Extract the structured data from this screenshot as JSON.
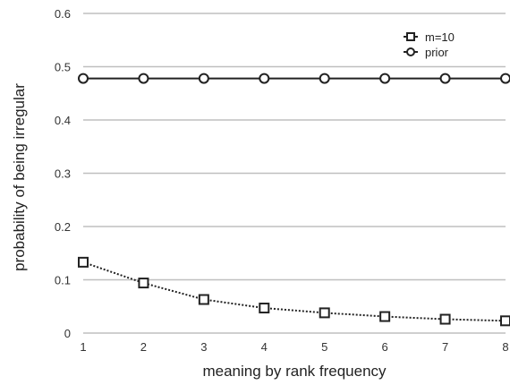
{
  "chart_data": {
    "type": "line",
    "title": "",
    "xlabel": "meaning by rank frequency",
    "ylabel": "probability of being irregular",
    "x": [
      1,
      2,
      3,
      4,
      5,
      6,
      7,
      8
    ],
    "xticks": [
      "1",
      "2",
      "3",
      "4",
      "5",
      "6",
      "7",
      "8"
    ],
    "yticks": [
      "0",
      "0.1",
      "0.2",
      "0.3",
      "0.4",
      "0.5",
      "0.6"
    ],
    "xlim": [
      1,
      8
    ],
    "ylim": [
      0,
      0.6
    ],
    "grid": "horizontal",
    "legend_position": "top-right",
    "series": [
      {
        "name": "m=10",
        "marker": "square",
        "line_style": "dotted",
        "color": "#222222",
        "values": [
          0.133,
          0.094,
          0.063,
          0.047,
          0.038,
          0.031,
          0.026,
          0.023
        ]
      },
      {
        "name": "prior",
        "marker": "circle",
        "line_style": "solid",
        "color": "#222222",
        "values": [
          0.478,
          0.478,
          0.478,
          0.478,
          0.478,
          0.478,
          0.478,
          0.478
        ]
      }
    ],
    "colors": {
      "grid": "#bfbfbf",
      "text": "#333333"
    }
  }
}
